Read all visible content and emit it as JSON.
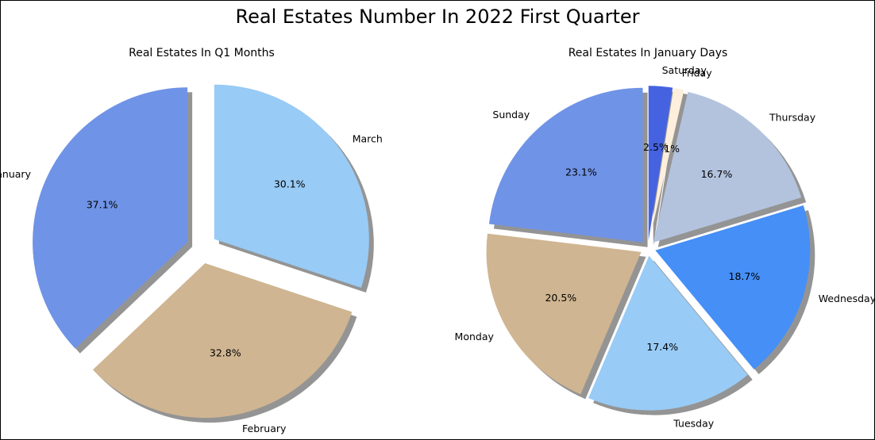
{
  "title": "Real Estates Number In 2022 First Quarter",
  "chart_data": [
    {
      "type": "pie",
      "title": "Real Estates In Q1 Months",
      "labels": [
        "January",
        "February",
        "March"
      ],
      "values": [
        37.1,
        32.8,
        30.1
      ],
      "percent_labels": [
        "37.1%",
        "32.8%",
        "30.1%"
      ],
      "colors": [
        "#6f93e6",
        "#cfb591",
        "#98cbf5"
      ],
      "explode": [
        0.1,
        0.1,
        0.1
      ],
      "start_angle_deg": 90,
      "direction": "counterclockwise",
      "shadow": true
    },
    {
      "type": "pie",
      "title": "Real Estates In January Days",
      "labels": [
        "Sunday",
        "Monday",
        "Tuesday",
        "Wednesday",
        "Thursday",
        "Friday",
        "Saturday"
      ],
      "values": [
        23.1,
        20.5,
        17.4,
        18.7,
        16.7,
        1.1,
        2.5
      ],
      "percent_labels": [
        "23.1%",
        "20.5%",
        "17.4%",
        "18.7%",
        "16.7%",
        "1.1%",
        "2.5%"
      ],
      "colors": [
        "#6f93e6",
        "#cfb591",
        "#98cbf5",
        "#458ff7",
        "#b3c3de",
        "#fdefdc",
        "#4563e0"
      ],
      "explode": [
        0.05,
        0.05,
        0.05,
        0.05,
        0.05,
        0.05,
        0.05
      ],
      "start_angle_deg": 90,
      "direction": "counterclockwise",
      "shadow": true
    }
  ]
}
